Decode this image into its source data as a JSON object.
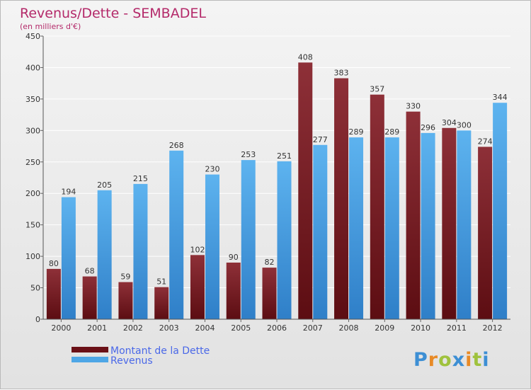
{
  "chart_data": {
    "type": "bar",
    "title": "Revenus/Dette - SEMBADEL",
    "subtitle": "(en milliers d'€)",
    "categories": [
      "2000",
      "2001",
      "2002",
      "2003",
      "2004",
      "2005",
      "2006",
      "2007",
      "2008",
      "2009",
      "2010",
      "2011",
      "2012"
    ],
    "series": [
      {
        "name": "Montant de la Dette",
        "color": "#7a1c22",
        "values": [
          80,
          68,
          59,
          51,
          102,
          90,
          82,
          408,
          383,
          357,
          330,
          304,
          274
        ]
      },
      {
        "name": "Revenus",
        "color": "#4ea6e6",
        "values": [
          194,
          205,
          215,
          268,
          230,
          253,
          251,
          277,
          289,
          289,
          296,
          300,
          344
        ]
      }
    ],
    "y_ticks": [
      0,
      50,
      100,
      150,
      200,
      250,
      300,
      350,
      400,
      450
    ],
    "ylim": [
      0,
      450
    ],
    "grid": true,
    "legend_position": "bottom-left"
  },
  "brand": {
    "name": "Proxiti",
    "letters": [
      "P",
      "r",
      "o",
      "x",
      "i",
      "t",
      "i"
    ],
    "colors": [
      "#3d8fd4",
      "#e88a26",
      "#9fc23d",
      "#3d8fd4",
      "#e88a26",
      "#9fc23d",
      "#3d8fd4"
    ]
  }
}
